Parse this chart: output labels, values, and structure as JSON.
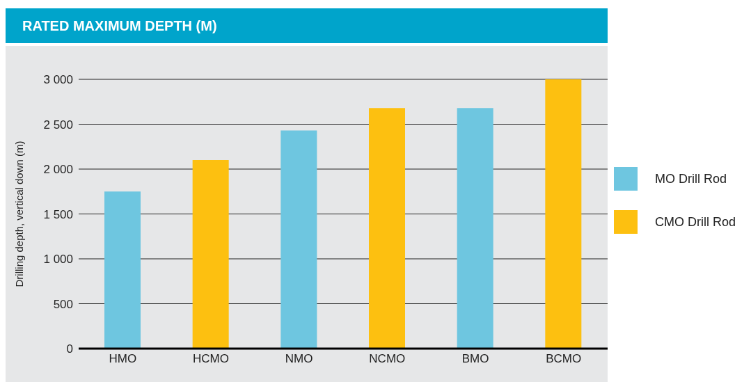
{
  "chart_data": {
    "type": "bar",
    "title": "RATED MAXIMUM DEPTH (M)",
    "ylabel": "Drilling depth, vertical down (m)",
    "categories": [
      "HMO",
      "HCMO",
      "NMO",
      "NCMO",
      "BMO",
      "BCMO"
    ],
    "series": [
      {
        "name": "MO Drill Rod",
        "color": "#6ec6e0",
        "values": [
          1750,
          null,
          2430,
          null,
          2680,
          null
        ]
      },
      {
        "name": "CMO Drill Rod",
        "color": "#fdc010",
        "values": [
          null,
          2100,
          null,
          2680,
          null,
          3000
        ]
      }
    ],
    "ylim": [
      0,
      3000
    ],
    "yticks": [
      0,
      500,
      {
        "value": 1000,
        "label": "1 000"
      },
      {
        "value": 1500,
        "label": "1 500"
      },
      {
        "value": 2000,
        "label": "2 000"
      },
      {
        "value": 2500,
        "label": "2 500"
      },
      {
        "value": 3000,
        "label": "3 000"
      }
    ],
    "grid": "y",
    "legend": "right"
  }
}
